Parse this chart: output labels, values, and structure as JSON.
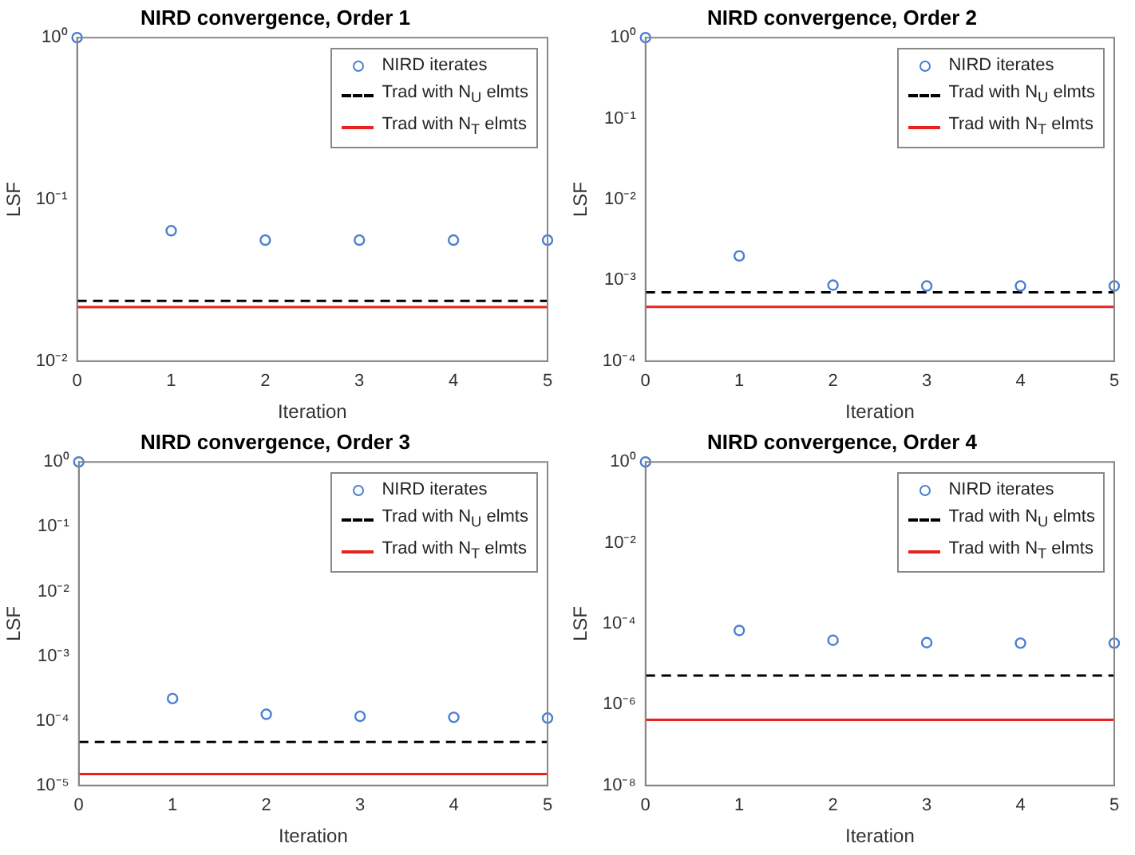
{
  "chart_data": [
    {
      "type": "scatter",
      "title": "NIRD convergence, Order 1",
      "xlabel": "Iteration",
      "ylabel": "LSF",
      "log": "y",
      "grid": false,
      "legend": "top right",
      "xlim": [
        0,
        5
      ],
      "xticks": [
        0,
        1,
        2,
        3,
        4,
        5
      ],
      "ylim": [
        0.01,
        1
      ],
      "yticks": [
        {
          "value": 0.01,
          "label": "10⁻²"
        },
        {
          "value": 0.1,
          "label": "10⁻¹"
        },
        {
          "value": 1,
          "label": "10⁰"
        }
      ],
      "series": [
        {
          "name": "NIRD iterates",
          "type": "scatter",
          "marker": "circle",
          "color": "#4a7fd0",
          "x": [
            0,
            1,
            2,
            3,
            4,
            5
          ],
          "values": [
            1,
            0.064,
            0.056,
            0.056,
            0.056,
            0.056
          ]
        },
        {
          "name": "Trad with N$_{U}$ elmts",
          "type": "line",
          "marker": "none",
          "line_style": "dashed",
          "color": "#000000",
          "x": [
            0,
            5
          ],
          "values": [
            0.0236,
            0.0236
          ]
        },
        {
          "name": "Trad with N$_{T}$ elmts",
          "type": "line",
          "marker": "none",
          "line_style": "solid",
          "color": "#e8221e",
          "x": [
            0,
            5
          ],
          "values": [
            0.0216,
            0.0216
          ]
        }
      ]
    },
    {
      "type": "scatter",
      "title": "NIRD convergence, Order 2",
      "xlabel": "Iteration",
      "ylabel": "LSF",
      "log": "y",
      "grid": false,
      "legend": "top right",
      "xlim": [
        0,
        5
      ],
      "xticks": [
        0,
        1,
        2,
        3,
        4,
        5
      ],
      "ylim": [
        0.0001,
        1
      ],
      "yticks": [
        {
          "value": 0.0001,
          "label": "10⁻⁴"
        },
        {
          "value": 0.001,
          "label": "10⁻³"
        },
        {
          "value": 0.01,
          "label": "10⁻²"
        },
        {
          "value": 0.1,
          "label": "10⁻¹"
        },
        {
          "value": 1,
          "label": "10⁰"
        }
      ],
      "series": [
        {
          "name": "NIRD iterates",
          "type": "scatter",
          "marker": "circle",
          "color": "#4a7fd0",
          "x": [
            0,
            1,
            2,
            3,
            4,
            5
          ],
          "values": [
            1,
            0.002,
            0.00087,
            0.00085,
            0.00085,
            0.00085
          ]
        },
        {
          "name": "Trad with N$_{U}$ elmts",
          "type": "line",
          "marker": "none",
          "line_style": "dashed",
          "color": "#000000",
          "x": [
            0,
            5
          ],
          "values": [
            0.00071,
            0.00071
          ]
        },
        {
          "name": "Trad with N$_{T}$ elmts",
          "type": "line",
          "marker": "none",
          "line_style": "solid",
          "color": "#e8221e",
          "x": [
            0,
            5
          ],
          "values": [
            0.00047,
            0.00047
          ]
        }
      ]
    },
    {
      "type": "scatter",
      "title": "NIRD convergence, Order 3",
      "xlabel": "Iteration",
      "ylabel": "LSF",
      "log": "y",
      "grid": false,
      "legend": "top right",
      "xlim": [
        0,
        5
      ],
      "xticks": [
        0,
        1,
        2,
        3,
        4,
        5
      ],
      "ylim": [
        1e-05,
        1
      ],
      "yticks": [
        {
          "value": 1e-05,
          "label": "10⁻⁵"
        },
        {
          "value": 0.0001,
          "label": "10⁻⁴"
        },
        {
          "value": 0.001,
          "label": "10⁻³"
        },
        {
          "value": 0.01,
          "label": "10⁻²"
        },
        {
          "value": 0.1,
          "label": "10⁻¹"
        },
        {
          "value": 1,
          "label": "10⁰"
        }
      ],
      "series": [
        {
          "name": "NIRD iterates",
          "type": "scatter",
          "marker": "circle",
          "color": "#4a7fd0",
          "x": [
            0,
            1,
            2,
            3,
            4,
            5
          ],
          "values": [
            1,
            0.00022,
            0.000126,
            0.000117,
            0.000113,
            0.00011
          ]
        },
        {
          "name": "Trad with N$_{U}$ elmts",
          "type": "line",
          "marker": "none",
          "line_style": "dashed",
          "color": "#000000",
          "x": [
            0,
            5
          ],
          "values": [
            4.7e-05,
            4.7e-05
          ]
        },
        {
          "name": "Trad with N$_{T}$ elmts",
          "type": "line",
          "marker": "none",
          "line_style": "solid",
          "color": "#e8221e",
          "x": [
            0,
            5
          ],
          "values": [
            1.5e-05,
            1.5e-05
          ]
        }
      ]
    },
    {
      "type": "scatter",
      "title": "NIRD convergence, Order 4",
      "xlabel": "Iteration",
      "ylabel": "LSF",
      "log": "y",
      "grid": false,
      "legend": "top right",
      "xlim": [
        0,
        5
      ],
      "xticks": [
        0,
        1,
        2,
        3,
        4,
        5
      ],
      "ylim": [
        1e-08,
        1
      ],
      "yticks": [
        {
          "value": 1e-08,
          "label": "10⁻⁸"
        },
        {
          "value": 1e-06,
          "label": "10⁻⁶"
        },
        {
          "value": 0.0001,
          "label": "10⁻⁴"
        },
        {
          "value": 0.01,
          "label": "10⁻²"
        },
        {
          "value": 1,
          "label": "10⁰"
        }
      ],
      "series": [
        {
          "name": "NIRD iterates",
          "type": "scatter",
          "marker": "circle",
          "color": "#4a7fd0",
          "x": [
            0,
            1,
            2,
            3,
            4,
            5
          ],
          "values": [
            1,
            6.8e-05,
            3.9e-05,
            3.4e-05,
            3.3e-05,
            3.3e-05
          ]
        },
        {
          "name": "Trad with N$_{U}$ elmts",
          "type": "line",
          "marker": "none",
          "line_style": "dashed",
          "color": "#000000",
          "x": [
            0,
            5
          ],
          "values": [
            5.2e-06,
            5.2e-06
          ]
        },
        {
          "name": "Trad with N$_{T}$ elmts",
          "type": "line",
          "marker": "none",
          "line_style": "solid",
          "color": "#e8221e",
          "x": [
            0,
            5
          ],
          "values": [
            4.2e-07,
            4.2e-07
          ]
        }
      ]
    }
  ]
}
